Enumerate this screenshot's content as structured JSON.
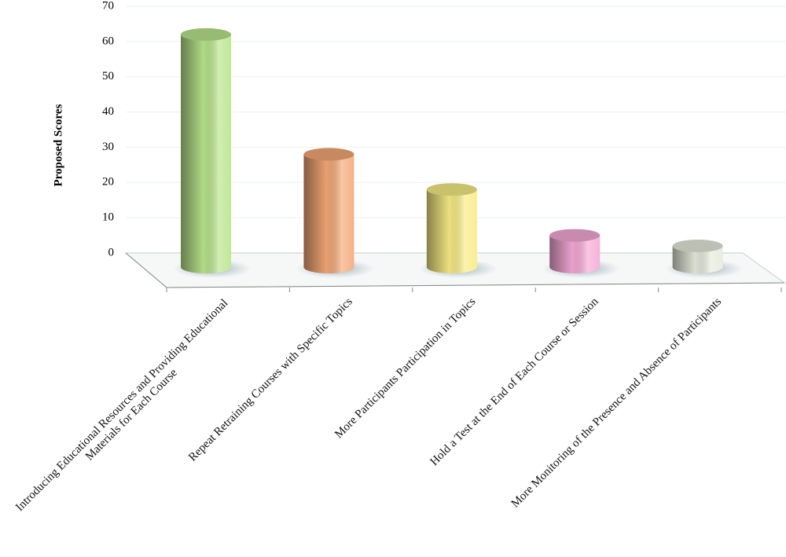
{
  "chart_data": {
    "type": "bar",
    "y_label": "Proposed Scores",
    "categories": [
      "Introducing Educational Resources and Providing Educational Materials for Each Course",
      "Repeat Retraining Courses with Specific Topics",
      "More Participants Participation in Topics",
      "Hold a Test at the End of Each Course or Session",
      "More Monitoring of the Presence and Absence of Participants"
    ],
    "values": [
      62,
      28,
      18,
      5,
      2
    ],
    "colors": [
      "#b9e58c",
      "#f4a877",
      "#f7ec85",
      "#f6a9d6",
      "#e6ebdc"
    ],
    "ylim": [
      0,
      70
    ],
    "yticks": [
      0,
      10,
      20,
      30,
      40,
      50,
      60,
      70
    ],
    "grid": true
  }
}
